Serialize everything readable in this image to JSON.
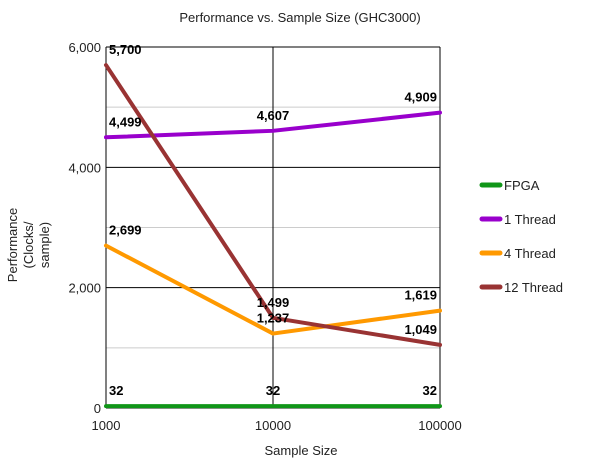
{
  "chart_data": {
    "type": "line",
    "title": "Performance vs. Sample Size (GHC3000)",
    "xlabel": "Sample Size",
    "ylabel": [
      "Performance",
      "(Clocks/",
      "sample)"
    ],
    "x": [
      "1000",
      "10000",
      "100000"
    ],
    "x_scale": "log",
    "ylim": [
      0,
      6000
    ],
    "y_ticks": [
      "0",
      "2,000",
      "4,000",
      "6,000"
    ],
    "grid": true,
    "legend_position": "right",
    "series": [
      {
        "name": "FPGA",
        "color": "#109618",
        "values": [
          32,
          32,
          32
        ],
        "labels": [
          "32",
          "32",
          "32"
        ]
      },
      {
        "name": "1 Thread",
        "color": "#9900cc",
        "values": [
          4499,
          4607,
          4909
        ],
        "labels": [
          "4,499",
          "4,607",
          "4,909"
        ]
      },
      {
        "name": "4 Thread",
        "color": "#ff9900",
        "values": [
          2699,
          1237,
          1619
        ],
        "labels": [
          "2,699",
          "1,237",
          "1,619"
        ]
      },
      {
        "name": "12 Thread",
        "color": "#993333",
        "values": [
          5700,
          1499,
          1049
        ],
        "labels": [
          "5,700",
          "1,499",
          "1,049"
        ]
      }
    ]
  }
}
